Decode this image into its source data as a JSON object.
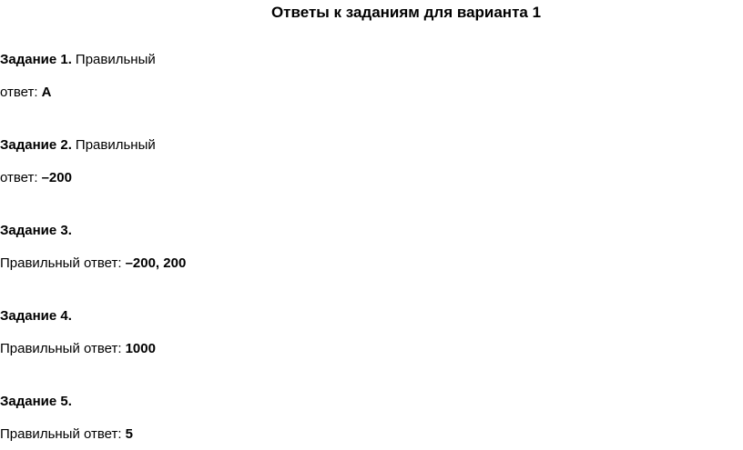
{
  "title": "Ответы к заданиям для варианта 1",
  "items": [
    {
      "lines": [
        [
          {
            "text": "Задание 1.",
            "bold": true
          },
          {
            "text": "Правильный"
          }
        ],
        [
          {
            "text": "ответ:"
          },
          {
            "text": "А",
            "bold": true
          }
        ]
      ]
    },
    {
      "lines": [
        [
          {
            "text": "Задание 2.",
            "bold": true
          },
          {
            "text": "Правильный"
          }
        ],
        [
          {
            "text": "ответ:"
          },
          {
            "text": "–200",
            "bold": true
          }
        ]
      ]
    },
    {
      "lines": [
        [
          {
            "text": "Задание 3.",
            "bold": true
          }
        ],
        [
          {
            "text": "Правильный ответ:"
          },
          {
            "text": "–200, 200",
            "bold": true
          }
        ]
      ]
    },
    {
      "lines": [
        [
          {
            "text": "Задание 4.",
            "bold": true
          }
        ],
        [
          {
            "text": "Правильный ответ:"
          },
          {
            "text": "1000",
            "bold": true
          }
        ]
      ]
    },
    {
      "lines": [
        [
          {
            "text": "Задание 5.",
            "bold": true
          }
        ],
        [
          {
            "text": "Правильный ответ:"
          },
          {
            "text": "5",
            "bold": true
          }
        ]
      ]
    }
  ]
}
